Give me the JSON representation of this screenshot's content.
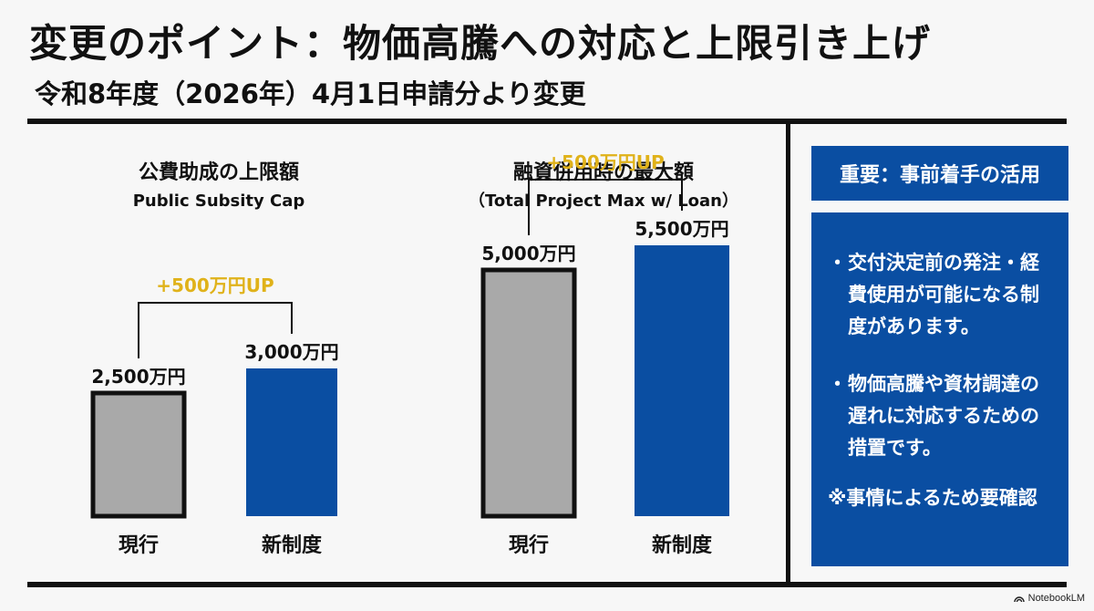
{
  "header": {
    "title": "変更のポイント：物価高騰への対応と上限引き上げ",
    "subtitle": "令和8年度（2026年）4月1日申請分より変更"
  },
  "chart_data": [
    {
      "type": "bar",
      "title": "公費助成の上限額",
      "subtitle": "Public Subsity Cap",
      "categories": [
        "現行",
        "新制度"
      ],
      "values": [
        2500,
        3000
      ],
      "unit": "万円",
      "value_labels": [
        "2,500万円",
        "3,000万円"
      ],
      "bracket_label": "+500万円UP",
      "colors": [
        "#a9a9a9",
        "#0a4ea2"
      ]
    },
    {
      "type": "bar",
      "title": "融資併用時の最大額",
      "subtitle": "（Total Project Max w/ Loan）",
      "categories": [
        "現行",
        "新制度"
      ],
      "values": [
        5000,
        5500
      ],
      "unit": "万円",
      "value_labels": [
        "5,000万円",
        "5,500万円"
      ],
      "bracket_label": "+500万円UP",
      "colors": [
        "#a9a9a9",
        "#0a4ea2"
      ]
    }
  ],
  "sidebar": {
    "heading": "重要：事前着手の活用",
    "bullets": [
      "交付決定前の発注・経費使用が可能になる制度があります。",
      "物価高騰や資材調達の遅れに対応するための措置です。"
    ],
    "bullet_marker": "・",
    "note": "※事情によるため要確認"
  },
  "branding": {
    "logo_text": "NotebookLM",
    "logo_icon": "notebooklm-icon"
  },
  "colors": {
    "accent": "#0a4ea2",
    "highlight": "#e0b21a",
    "current_bar": "#a9a9a9"
  }
}
